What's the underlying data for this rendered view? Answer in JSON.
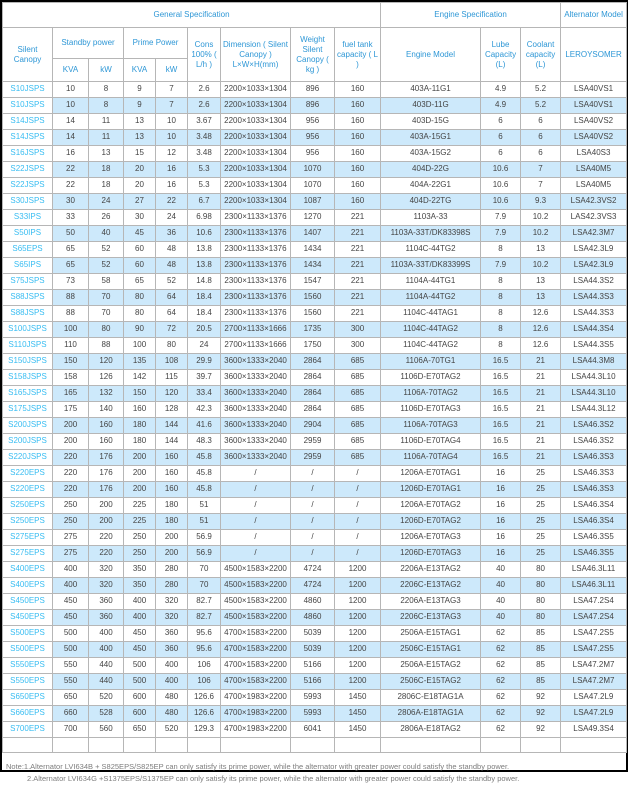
{
  "colors": {
    "header_text": "#2e97d6",
    "model_link_text": "#38bdf2",
    "alt_row_bg": "#cde9fb",
    "grid_border": "#b6b6b6",
    "outer_border": "#000000",
    "note_text": "#7d7d7d"
  },
  "table": {
    "group_headers": [
      {
        "label": "General Specification",
        "span": 9
      },
      {
        "label": "Engine Specification",
        "span": 3
      },
      {
        "label": "Alternator Model",
        "span": 1
      }
    ],
    "columns": {
      "silent_canopy": "Silent Canopy",
      "standby_power": "Standby power",
      "prime_power": "Prime Power",
      "standby_kva": "KVA",
      "standby_kw": "kW",
      "prime_kva": "KVA",
      "prime_kw": "kW",
      "cons": "Cons 100% ( L/h )",
      "dimension": "Dimension ( Silent Canopy ) L×W×H(mm)",
      "weight": "Weight Silent Canopy ( kg )",
      "fuel": "fuel tank capacity ( L )",
      "engine": "Engine Model",
      "lube": "Lube Capacity (L)",
      "coolant": "Coolant capacity (L)",
      "alternator": "LEROYSOMER"
    },
    "rows": [
      [
        "S10JSPS",
        "10",
        "8",
        "9",
        "7",
        "2.6",
        "2200×1033×1304",
        "896",
        "160",
        "403A-11G1",
        "4.9",
        "5.2",
        "LSA40VS1"
      ],
      [
        "S10JSPS",
        "10",
        "8",
        "9",
        "7",
        "2.6",
        "2200×1033×1304",
        "896",
        "160",
        "403D-11G",
        "4.9",
        "5.2",
        "LSA40VS1"
      ],
      [
        "S14JSPS",
        "14",
        "11",
        "13",
        "10",
        "3.67",
        "2200×1033×1304",
        "956",
        "160",
        "403D-15G",
        "6",
        "6",
        "LSA40VS2"
      ],
      [
        "S14JSPS",
        "14",
        "11",
        "13",
        "10",
        "3.48",
        "2200×1033×1304",
        "956",
        "160",
        "403A-15G1",
        "6",
        "6",
        "LSA40VS2"
      ],
      [
        "S16JSPS",
        "16",
        "13",
        "15",
        "12",
        "3.48",
        "2200×1033×1304",
        "956",
        "160",
        "403A-15G2",
        "6",
        "6",
        "LSA40S3"
      ],
      [
        "S22JSPS",
        "22",
        "18",
        "20",
        "16",
        "5.3",
        "2200×1033×1304",
        "1070",
        "160",
        "404D-22G",
        "10.6",
        "7",
        "LSA40M5"
      ],
      [
        "S22JSPS",
        "22",
        "18",
        "20",
        "16",
        "5.3",
        "2200×1033×1304",
        "1070",
        "160",
        "404A-22G1",
        "10.6",
        "7",
        "LSA40M5"
      ],
      [
        "S30JSPS",
        "30",
        "24",
        "27",
        "22",
        "6.7",
        "2200×1033×1304",
        "1087",
        "160",
        "404D-22TG",
        "10.6",
        "9.3",
        "LSA42.3VS2"
      ],
      [
        "S33IPS",
        "33",
        "26",
        "30",
        "24",
        "6.98",
        "2300×1133×1376",
        "1270",
        "221",
        "1103A-33",
        "7.9",
        "10.2",
        "LAS42.3VS3"
      ],
      [
        "S50IPS",
        "50",
        "40",
        "45",
        "36",
        "10.6",
        "2300×1133×1376",
        "1407",
        "221",
        "1103A-33T/DK83398S",
        "7.9",
        "10.2",
        "LSA42.3M7"
      ],
      [
        "S65EPS",
        "65",
        "52",
        "60",
        "48",
        "13.8",
        "2300×1133×1376",
        "1434",
        "221",
        "1104C-44TG2",
        "8",
        "13",
        "LSA42.3L9"
      ],
      [
        "S65IPS",
        "65",
        "52",
        "60",
        "48",
        "13.8",
        "2300×1133×1376",
        "1434",
        "221",
        "1103A-33T/DK83399S",
        "7.9",
        "10.2",
        "LSA42.3L9"
      ],
      [
        "S75JSPS",
        "73",
        "58",
        "65",
        "52",
        "14.8",
        "2300×1133×1376",
        "1547",
        "221",
        "1104A-44TG1",
        "8",
        "13",
        "LSA44.3S2"
      ],
      [
        "S88JSPS",
        "88",
        "70",
        "80",
        "64",
        "18.4",
        "2300×1133×1376",
        "1560",
        "221",
        "1104A-44TG2",
        "8",
        "13",
        "LSA44.3S3"
      ],
      [
        "S88JSPS",
        "88",
        "70",
        "80",
        "64",
        "18.4",
        "2300×1133×1376",
        "1560",
        "221",
        "1104C-44TAG1",
        "8",
        "12.6",
        "LSA44.3S3"
      ],
      [
        "S100JSPS",
        "100",
        "80",
        "90",
        "72",
        "20.5",
        "2700×1133×1666",
        "1735",
        "300",
        "1104C-44TAG2",
        "8",
        "12.6",
        "LSA44.3S4"
      ],
      [
        "S110JSPS",
        "110",
        "88",
        "100",
        "80",
        "24",
        "2700×1133×1666",
        "1750",
        "300",
        "1104C-44TAG2",
        "8",
        "12.6",
        "LSA44.3S5"
      ],
      [
        "S150JSPS",
        "150",
        "120",
        "135",
        "108",
        "29.9",
        "3600×1333×2040",
        "2864",
        "685",
        "1106A-70TG1",
        "16.5",
        "21",
        "LSA44.3M8"
      ],
      [
        "S158JSPS",
        "158",
        "126",
        "142",
        "115",
        "39.7",
        "3600×1333×2040",
        "2864",
        "685",
        "1106D-E70TAG2",
        "16.5",
        "21",
        "LSA44.3L10"
      ],
      [
        "S165JSPS",
        "165",
        "132",
        "150",
        "120",
        "33.4",
        "3600×1333×2040",
        "2864",
        "685",
        "1106A-70TAG2",
        "16.5",
        "21",
        "LSA44.3L10"
      ],
      [
        "S175JSPS",
        "175",
        "140",
        "160",
        "128",
        "42.3",
        "3600×1333×2040",
        "2864",
        "685",
        "1106D-E70TAG3",
        "16.5",
        "21",
        "LSA44.3L12"
      ],
      [
        "S200JSPS",
        "200",
        "160",
        "180",
        "144",
        "41.6",
        "3600×1333×2040",
        "2904",
        "685",
        "1106A-70TAG3",
        "16.5",
        "21",
        "LSA46.3S2"
      ],
      [
        "S200JSPS",
        "200",
        "160",
        "180",
        "144",
        "48.3",
        "3600×1333×2040",
        "2959",
        "685",
        "1106D-E70TAG4",
        "16.5",
        "21",
        "LSA46.3S2"
      ],
      [
        "S220JSPS",
        "220",
        "176",
        "200",
        "160",
        "45.8",
        "3600×1333×2040",
        "2959",
        "685",
        "1106A-70TAG4",
        "16.5",
        "21",
        "LSA46.3S3"
      ],
      [
        "S220EPS",
        "220",
        "176",
        "200",
        "160",
        "45.8",
        "/",
        "/",
        "/",
        "1206A-E70TAG1",
        "16",
        "25",
        "LSA46.3S3"
      ],
      [
        "S220EPS",
        "220",
        "176",
        "200",
        "160",
        "45.8",
        "/",
        "/",
        "/",
        "1206D-E70TAG1",
        "16",
        "25",
        "LSA46.3S3"
      ],
      [
        "S250EPS",
        "250",
        "200",
        "225",
        "180",
        "51",
        "/",
        "/",
        "/",
        "1206A-E70TAG2",
        "16",
        "25",
        "LSA46.3S4"
      ],
      [
        "S250EPS",
        "250",
        "200",
        "225",
        "180",
        "51",
        "/",
        "/",
        "/",
        "1206D-E70TAG2",
        "16",
        "25",
        "LSA46.3S4"
      ],
      [
        "S275EPS",
        "275",
        "220",
        "250",
        "200",
        "56.9",
        "/",
        "/",
        "/",
        "1206A-E70TAG3",
        "16",
        "25",
        "LSA46.3S5"
      ],
      [
        "S275EPS",
        "275",
        "220",
        "250",
        "200",
        "56.9",
        "/",
        "/",
        "/",
        "1206D-E70TAG3",
        "16",
        "25",
        "LSA46.3S5"
      ],
      [
        "S400EPS",
        "400",
        "320",
        "350",
        "280",
        "70",
        "4500×1583×2200",
        "4724",
        "1200",
        "2206A-E13TAG2",
        "40",
        "80",
        "LSA46.3L11"
      ],
      [
        "S400EPS",
        "400",
        "320",
        "350",
        "280",
        "70",
        "4500×1583×2200",
        "4724",
        "1200",
        "2206C-E13TAG2",
        "40",
        "80",
        "LSA46.3L11"
      ],
      [
        "S450EPS",
        "450",
        "360",
        "400",
        "320",
        "82.7",
        "4500×1583×2200",
        "4860",
        "1200",
        "2206A-E13TAG3",
        "40",
        "80",
        "LSA47.2S4"
      ],
      [
        "S450EPS",
        "450",
        "360",
        "400",
        "320",
        "82.7",
        "4500×1583×2200",
        "4860",
        "1200",
        "2206C-E13TAG3",
        "40",
        "80",
        "LSA47.2S4"
      ],
      [
        "S500EPS",
        "500",
        "400",
        "450",
        "360",
        "95.6",
        "4700×1583×2200",
        "5039",
        "1200",
        "2506A-E15TAG1",
        "62",
        "85",
        "LSA47.2S5"
      ],
      [
        "S500EPS",
        "500",
        "400",
        "450",
        "360",
        "95.6",
        "4700×1583×2200",
        "5039",
        "1200",
        "2506C-E15TAG1",
        "62",
        "85",
        "LSA47.2S5"
      ],
      [
        "S550EPS",
        "550",
        "440",
        "500",
        "400",
        "106",
        "4700×1583×2200",
        "5166",
        "1200",
        "2506A-E15TAG2",
        "62",
        "85",
        "LSA47.2M7"
      ],
      [
        "S550EPS",
        "550",
        "440",
        "500",
        "400",
        "106",
        "4700×1583×2200",
        "5166",
        "1200",
        "2506C-E15TAG2",
        "62",
        "85",
        "LSA47.2M7"
      ],
      [
        "S650EPS",
        "650",
        "520",
        "600",
        "480",
        "126.6",
        "4700×1983×2200",
        "5993",
        "1450",
        "2806C-E18TAG1A",
        "62",
        "92",
        "LSA47.2L9"
      ],
      [
        "S660EPS",
        "660",
        "528",
        "600",
        "480",
        "126.6",
        "4700×1983×2200",
        "5993",
        "1450",
        "2806A-E18TAG1A",
        "62",
        "92",
        "LSA47.2L9"
      ],
      [
        "S700EPS",
        "700",
        "560",
        "650",
        "520",
        "129.3",
        "4700×1983×2200",
        "6041",
        "1450",
        "2806A-E18TAG2",
        "62",
        "92",
        "LSA49.3S4"
      ]
    ]
  },
  "notes": {
    "line1": "Note:1.Alternator LVI634B + S825EPS/S825EP can only satisfy its prime power, while the alternator with greater power could satisfy the standby power.",
    "line2": "2.Alternator LVI634G +S1375EPS/S1375EP can only satisfy its prime power, while the alternator with greater power could satisfy the standby power."
  }
}
